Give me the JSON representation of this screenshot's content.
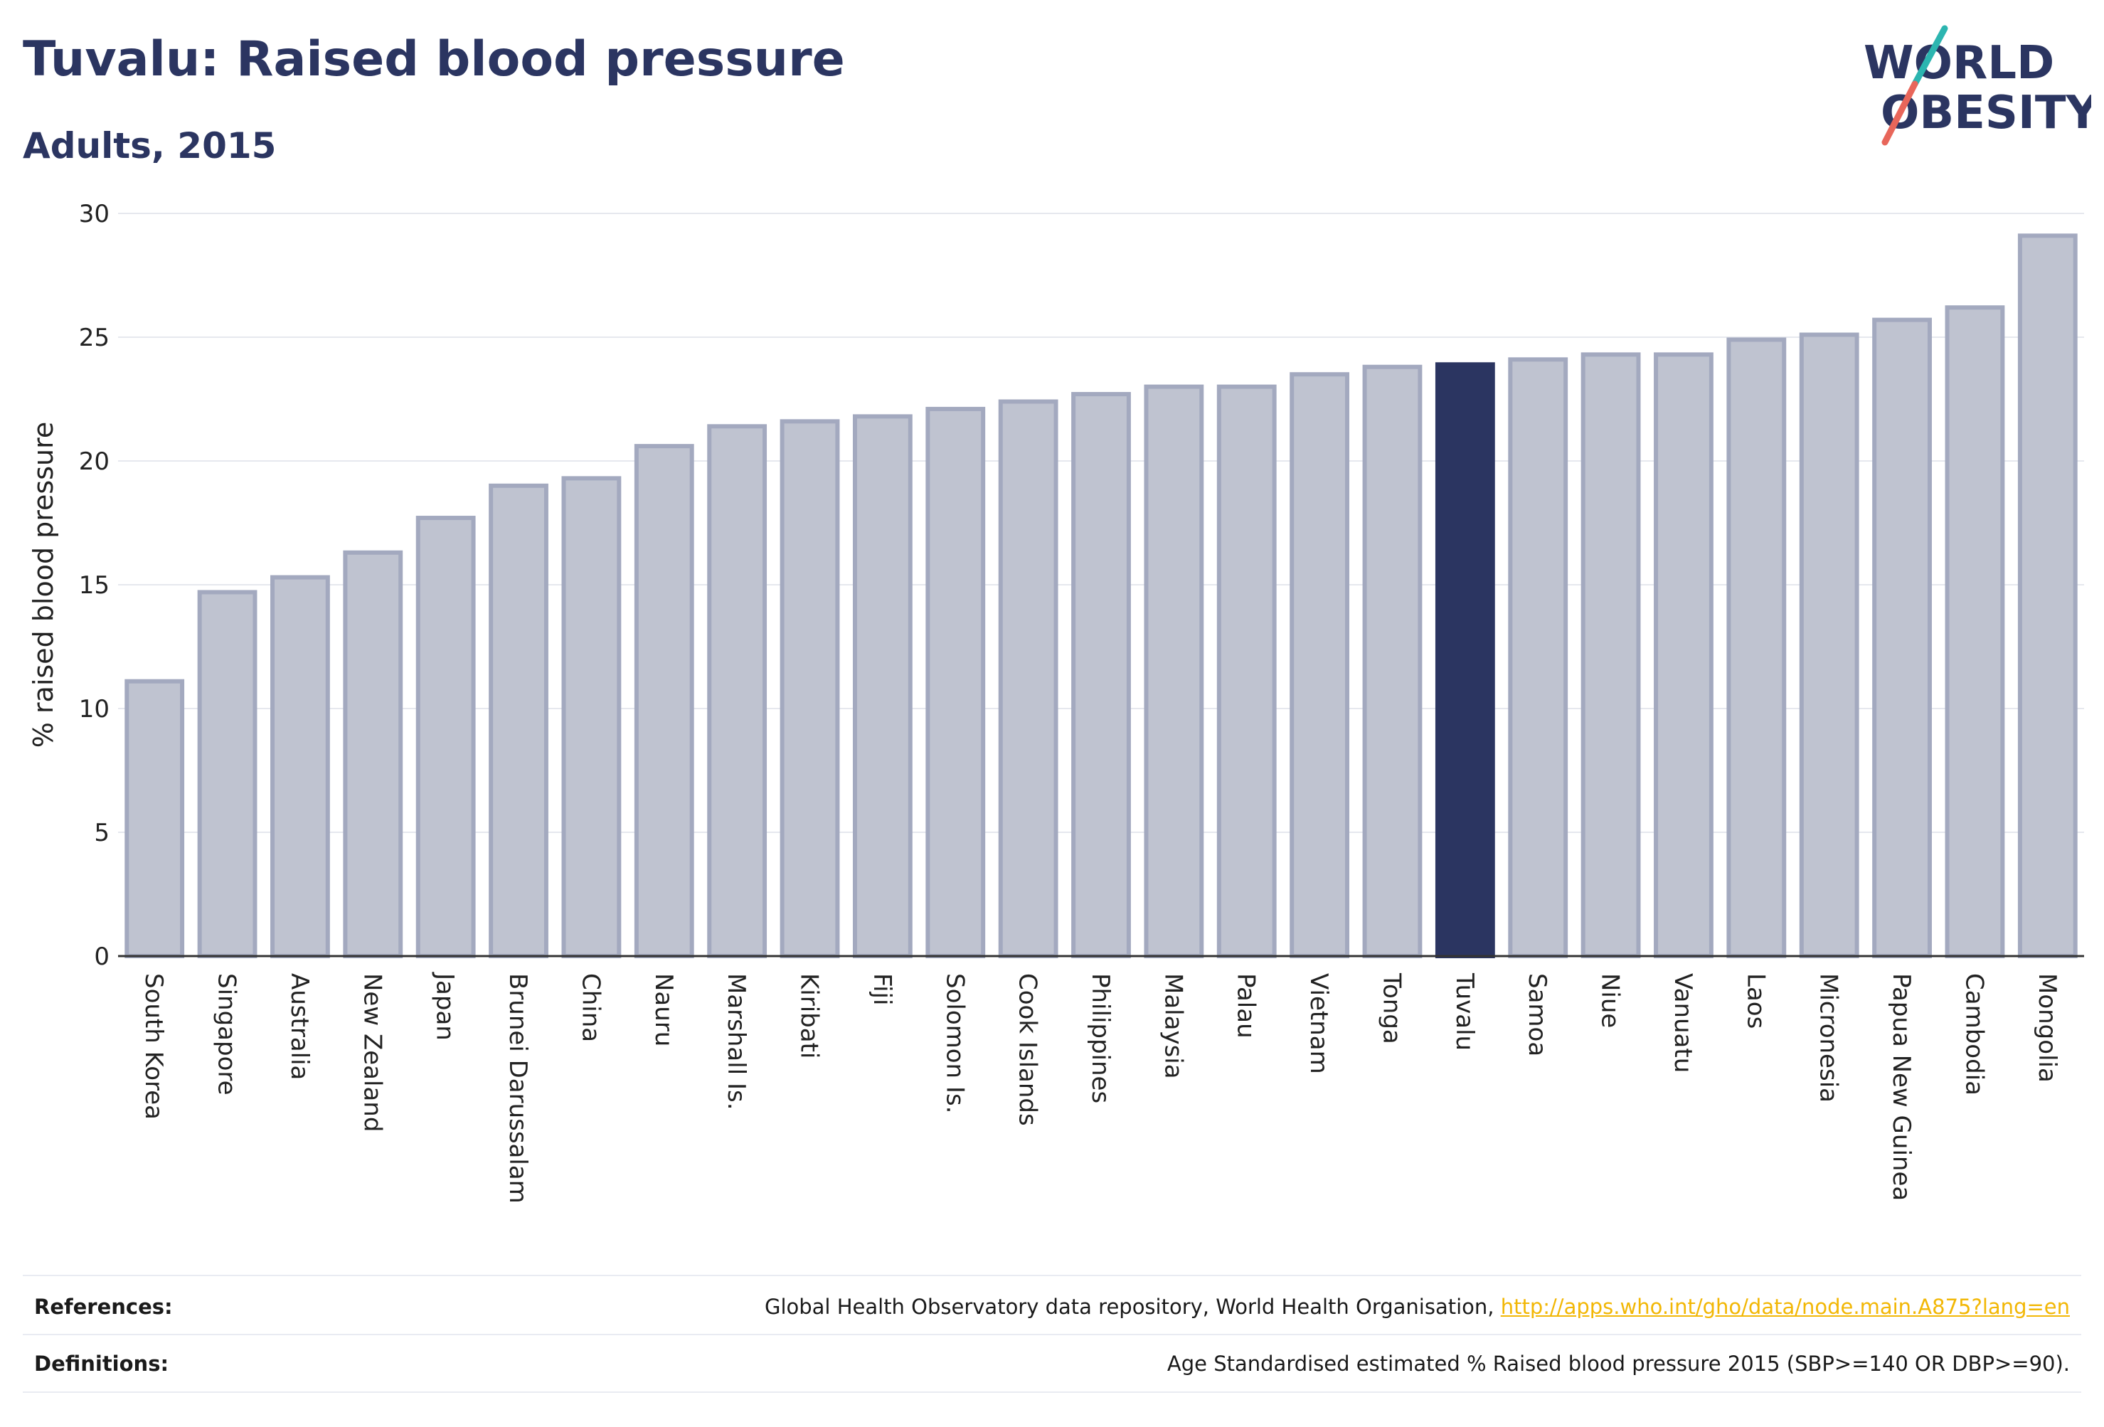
{
  "header": {
    "title": "Tuvalu: Raised blood pressure",
    "subtitle": "Adults, 2015"
  },
  "logo": {
    "line1": "WORLD",
    "line2": "OBESITY"
  },
  "chart_data": {
    "type": "bar",
    "ylabel": "% raised blood pressure",
    "ylim": [
      0,
      30
    ],
    "yticks": [
      0,
      5,
      10,
      15,
      20,
      25,
      30
    ],
    "grid": true,
    "highlight": "Tuvalu",
    "colors": {
      "bar": "#bfc3d0",
      "bar_border": "#a3a9bf",
      "highlight": "#2b3561",
      "grid": "#e6e8ee",
      "axis": "#333333"
    },
    "categories": [
      "South Korea",
      "Singapore",
      "Australia",
      "New Zealand",
      "Japan",
      "Brunei Darussalam",
      "China",
      "Nauru",
      "Marshall Is.",
      "Kiribati",
      "Fiji",
      "Solomon Is.",
      "Cook Islands",
      "Philippines",
      "Malaysia",
      "Palau",
      "Vietnam",
      "Tonga",
      "Tuvalu",
      "Samoa",
      "Niue",
      "Vanuatu",
      "Laos",
      "Micronesia",
      "Papua New Guinea",
      "Cambodia",
      "Mongolia"
    ],
    "values": [
      11.1,
      14.7,
      15.3,
      16.3,
      17.7,
      19.0,
      19.3,
      20.6,
      21.4,
      21.6,
      21.8,
      22.1,
      22.4,
      22.7,
      23.0,
      23.0,
      23.5,
      23.8,
      23.9,
      24.1,
      24.3,
      24.3,
      24.9,
      25.1,
      25.7,
      26.2,
      29.1
    ]
  },
  "footer": {
    "references_label": "References:",
    "references_text": "Global Health Observatory data repository, World Health Organisation, ",
    "references_link": "http://apps.who.int/gho/data/node.main.A875?lang=en",
    "definitions_label": "Definitions:",
    "definitions_text": "Age Standardised estimated % Raised blood pressure 2015 (SBP>=140 OR DBP>=90)."
  }
}
